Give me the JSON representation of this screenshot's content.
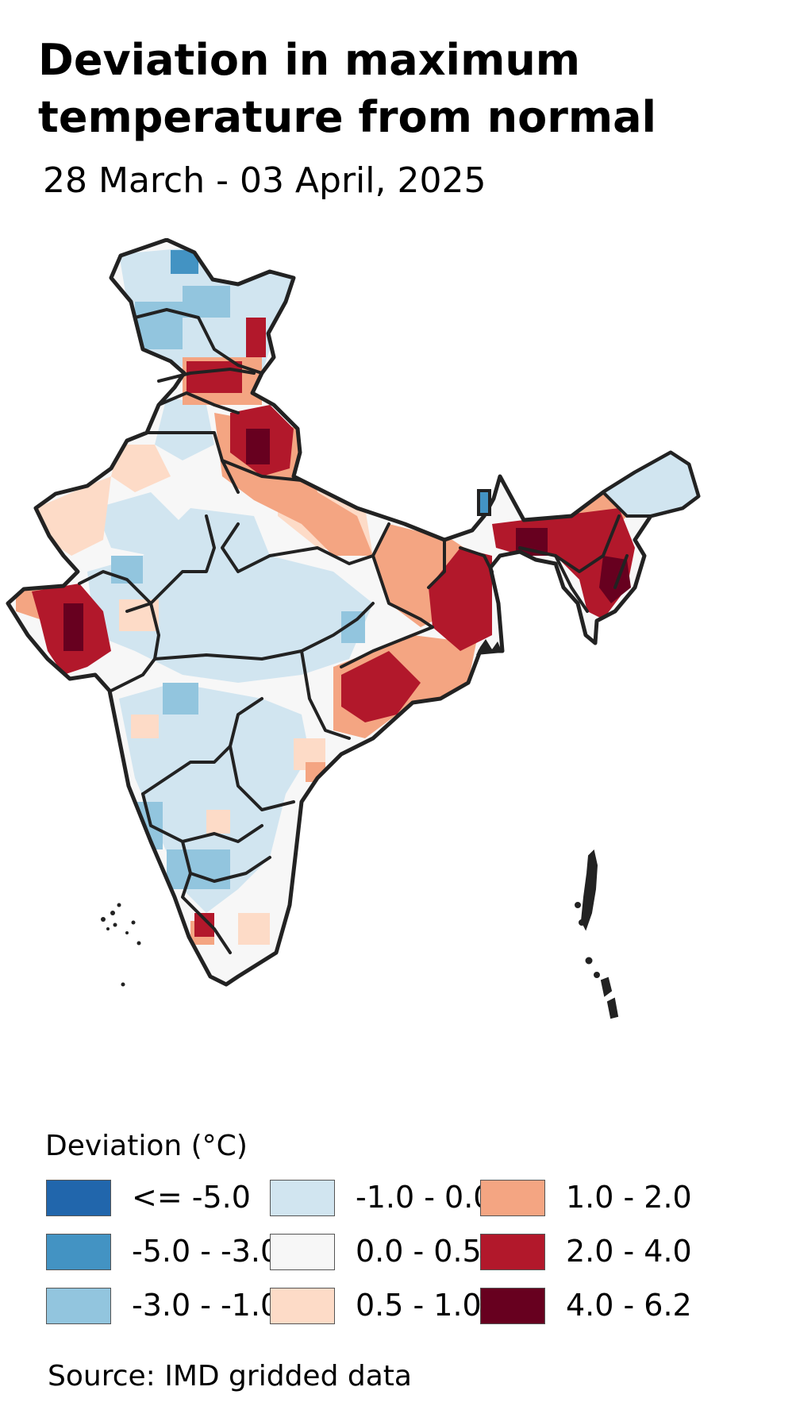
{
  "title": "Deviation in maximum temperature from normal",
  "subtitle": "28 March - 03 April, 2025",
  "map": {
    "region": "India",
    "fill_hint": "gridded deviation (°C) rendered as colored cells",
    "outline_color": "#222222"
  },
  "legend": {
    "title": "Deviation (°C)",
    "items": [
      {
        "label": "<= -5.0",
        "color": "#2166ac"
      },
      {
        "label": "-5.0 - -3.0",
        "color": "#4393c3"
      },
      {
        "label": "-3.0 - -1.0",
        "color": "#92c5de"
      },
      {
        "label": "-1.0 - 0.0",
        "color": "#d1e5f0"
      },
      {
        "label": "0.0 - 0.5",
        "color": "#f7f7f7"
      },
      {
        "label": "0.5 - 1.0",
        "color": "#fddbc7"
      },
      {
        "label": "1.0 - 2.0",
        "color": "#f4a582"
      },
      {
        "label": "2.0 - 4.0",
        "color": "#b2182b"
      },
      {
        "label": "4.0 - 6.2",
        "color": "#67001f"
      }
    ]
  },
  "source": "Source: IMD gridded data"
}
